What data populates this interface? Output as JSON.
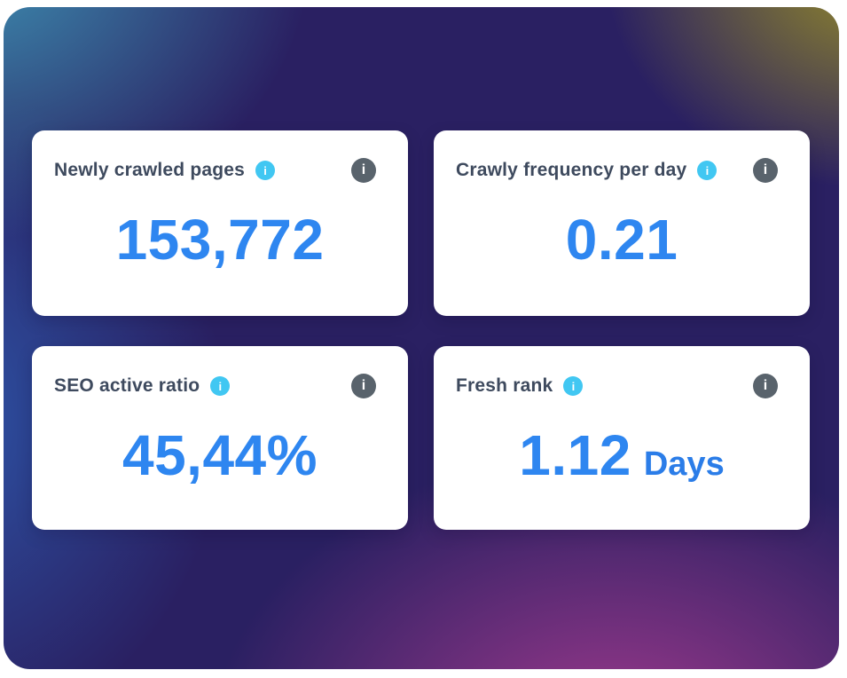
{
  "cards": [
    {
      "title": "Newly crawled pages",
      "value": "153,772",
      "unit": ""
    },
    {
      "title": "Crawly frequency per day",
      "value": "0.21",
      "unit": ""
    },
    {
      "title": "SEO active ratio",
      "value": "45,44%",
      "unit": ""
    },
    {
      "title": "Fresh rank",
      "value": "1.12",
      "unit": "Days"
    }
  ],
  "icons": {
    "title_info_glyph": "i",
    "corner_info_glyph": "i"
  },
  "colors": {
    "value_blue": "#2e86f0",
    "unit_blue": "#2b7de8",
    "title_slate": "#3e4a5e",
    "info_cyan": "#41c7f2",
    "info_gray": "#59636c",
    "card_background": "#ffffff",
    "bg_teal": "#3e93b4",
    "bg_olive": "#978d28",
    "bg_magenta": "#a23a8e",
    "bg_blue": "#2d55a8",
    "bg_navy": "#2a2062"
  }
}
